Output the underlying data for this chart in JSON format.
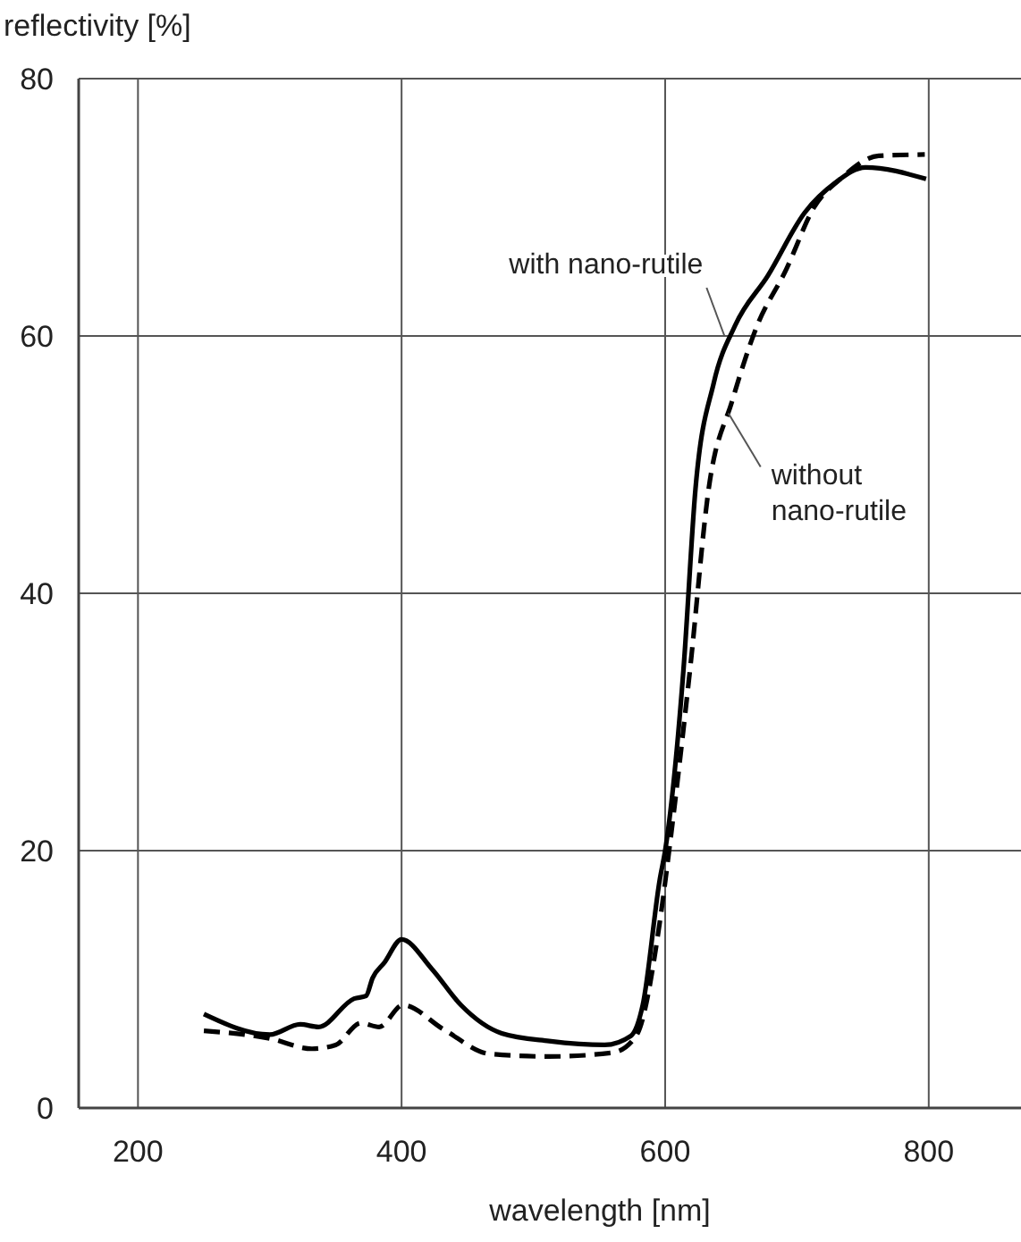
{
  "chart_data": {
    "type": "line",
    "xlabel": "wavelength [nm]",
    "ylabel": "reflectivity [%]",
    "xlim": [
      155,
      870
    ],
    "ylim": [
      0,
      80
    ],
    "xticks": [
      200,
      400,
      600,
      800
    ],
    "yticks": [
      0,
      20,
      40,
      60,
      80
    ],
    "grid": true,
    "series": [
      {
        "color": "#000000",
        "line_style": "solid",
        "x": [
          250,
          300,
          323,
          337,
          364,
          373,
          378,
          387,
          400,
          423,
          445,
          476,
          512,
          554,
          574,
          583,
          596,
          600,
          614,
          623,
          637,
          653,
          678,
          706,
          729,
          752,
          798
        ],
        "values": [
          7.3,
          5.7,
          6.5,
          6.3,
          8.5,
          8.7,
          10.1,
          11.3,
          13.1,
          10.8,
          8.0,
          5.8,
          5.2,
          4.9,
          5.6,
          8.0,
          17.8,
          20,
          34.2,
          48.1,
          56.4,
          60.8,
          64.7,
          69.6,
          71.9,
          73.1,
          72.2
        ]
      },
      {
        "color": "#000000",
        "line_style": "dashed",
        "x": [
          250,
          300,
          332,
          350,
          369,
          383,
          401,
          432,
          467,
          512,
          560,
          578,
          596,
          603,
          619,
          633,
          651,
          669,
          692,
          713,
          734,
          762,
          797
        ],
        "values": [
          6.0,
          5.4,
          4.6,
          4.9,
          6.6,
          6.3,
          8.0,
          6.1,
          4.2,
          4.0,
          4.3,
          5.6,
          14.5,
          20,
          34.2,
          48.1,
          55.0,
          60.6,
          65.2,
          70.0,
          72.3,
          74.0,
          74.1
        ]
      }
    ],
    "annotations": [
      {
        "text": "with nano-rutile",
        "x": 645,
        "y": 60
      },
      {
        "text": "without nano-rutile",
        "x": 648,
        "y": 54
      }
    ]
  }
}
